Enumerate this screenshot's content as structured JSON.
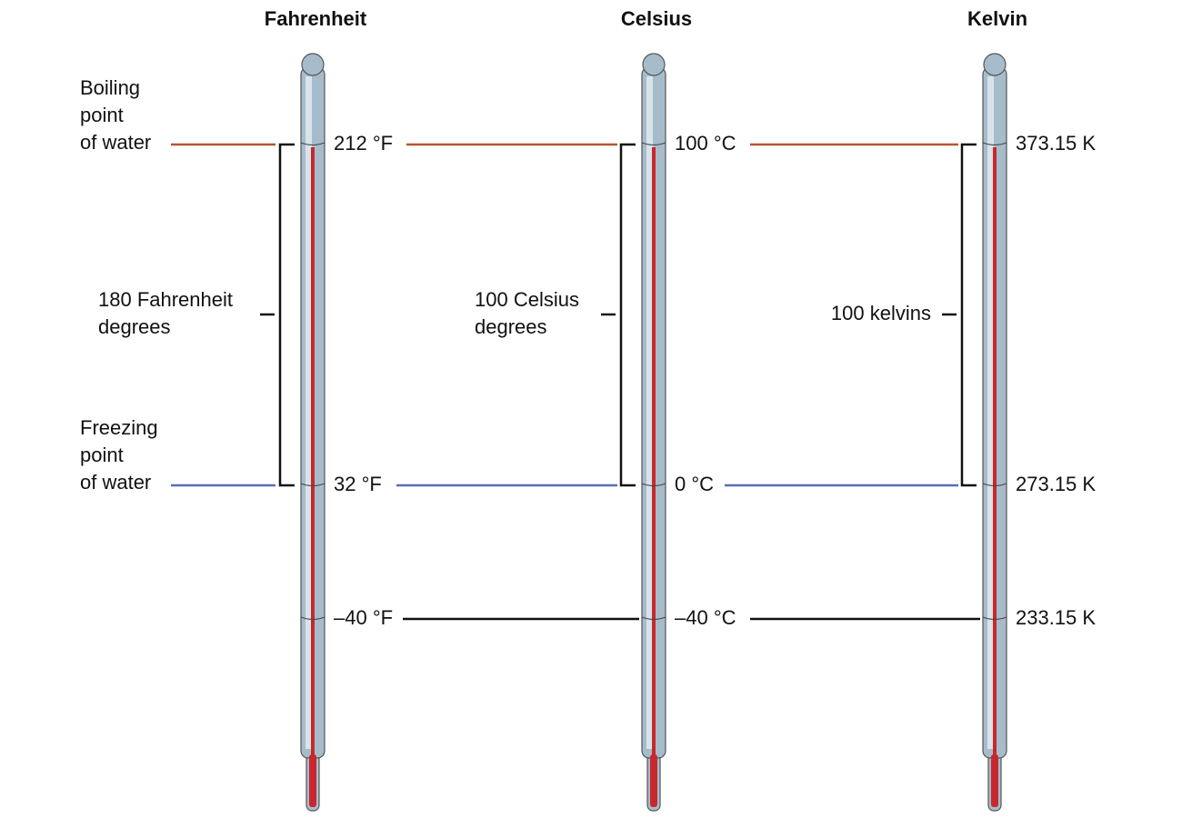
{
  "thermometers": [
    {
      "title": "Fahrenheit",
      "readings": [
        "212 °F",
        "32 °F",
        "–40 °F"
      ],
      "span": [
        "180 Fahrenheit",
        "degrees"
      ]
    },
    {
      "title": "Celsius",
      "readings": [
        "100 °C",
        "0 °C",
        "–40 °C"
      ],
      "span": [
        "100 Celsius",
        "degrees"
      ]
    },
    {
      "title": "Kelvin",
      "readings": [
        "373.15 K",
        "273.15 K",
        "233.15 K"
      ],
      "span": [
        "100 kelvins"
      ]
    }
  ],
  "left_labels": {
    "boiling": [
      "Boiling",
      "point",
      "of water"
    ],
    "freezing": [
      "Freezing",
      "point",
      "of water"
    ]
  }
}
